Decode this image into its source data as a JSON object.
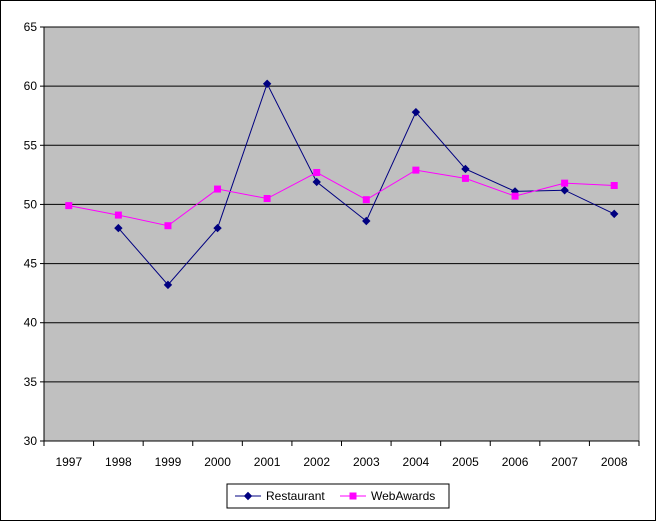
{
  "chart_data": {
    "type": "line",
    "title": "",
    "xlabel": "",
    "ylabel": "",
    "categories": [
      "1997",
      "1998",
      "1999",
      "2000",
      "2001",
      "2002",
      "2003",
      "2004",
      "2005",
      "2006",
      "2007",
      "2008"
    ],
    "series": [
      {
        "name": "Restaurant",
        "values": [
          null,
          48.0,
          43.2,
          48.0,
          60.2,
          51.9,
          48.6,
          57.8,
          53.0,
          51.1,
          51.2,
          49.2
        ],
        "color": "#000080",
        "marker": "diamond"
      },
      {
        "name": "WebAwards",
        "values": [
          49.9,
          49.1,
          48.2,
          51.3,
          50.5,
          52.7,
          50.4,
          52.9,
          52.2,
          50.7,
          51.8,
          51.6
        ],
        "color": "#ff00ff",
        "marker": "square"
      }
    ],
    "ylim": [
      30,
      65
    ],
    "yticks": [
      30,
      35,
      40,
      45,
      50,
      55,
      60,
      65
    ],
    "grid": true,
    "plot_background": "#c0c0c0",
    "legend_position": "bottom"
  }
}
